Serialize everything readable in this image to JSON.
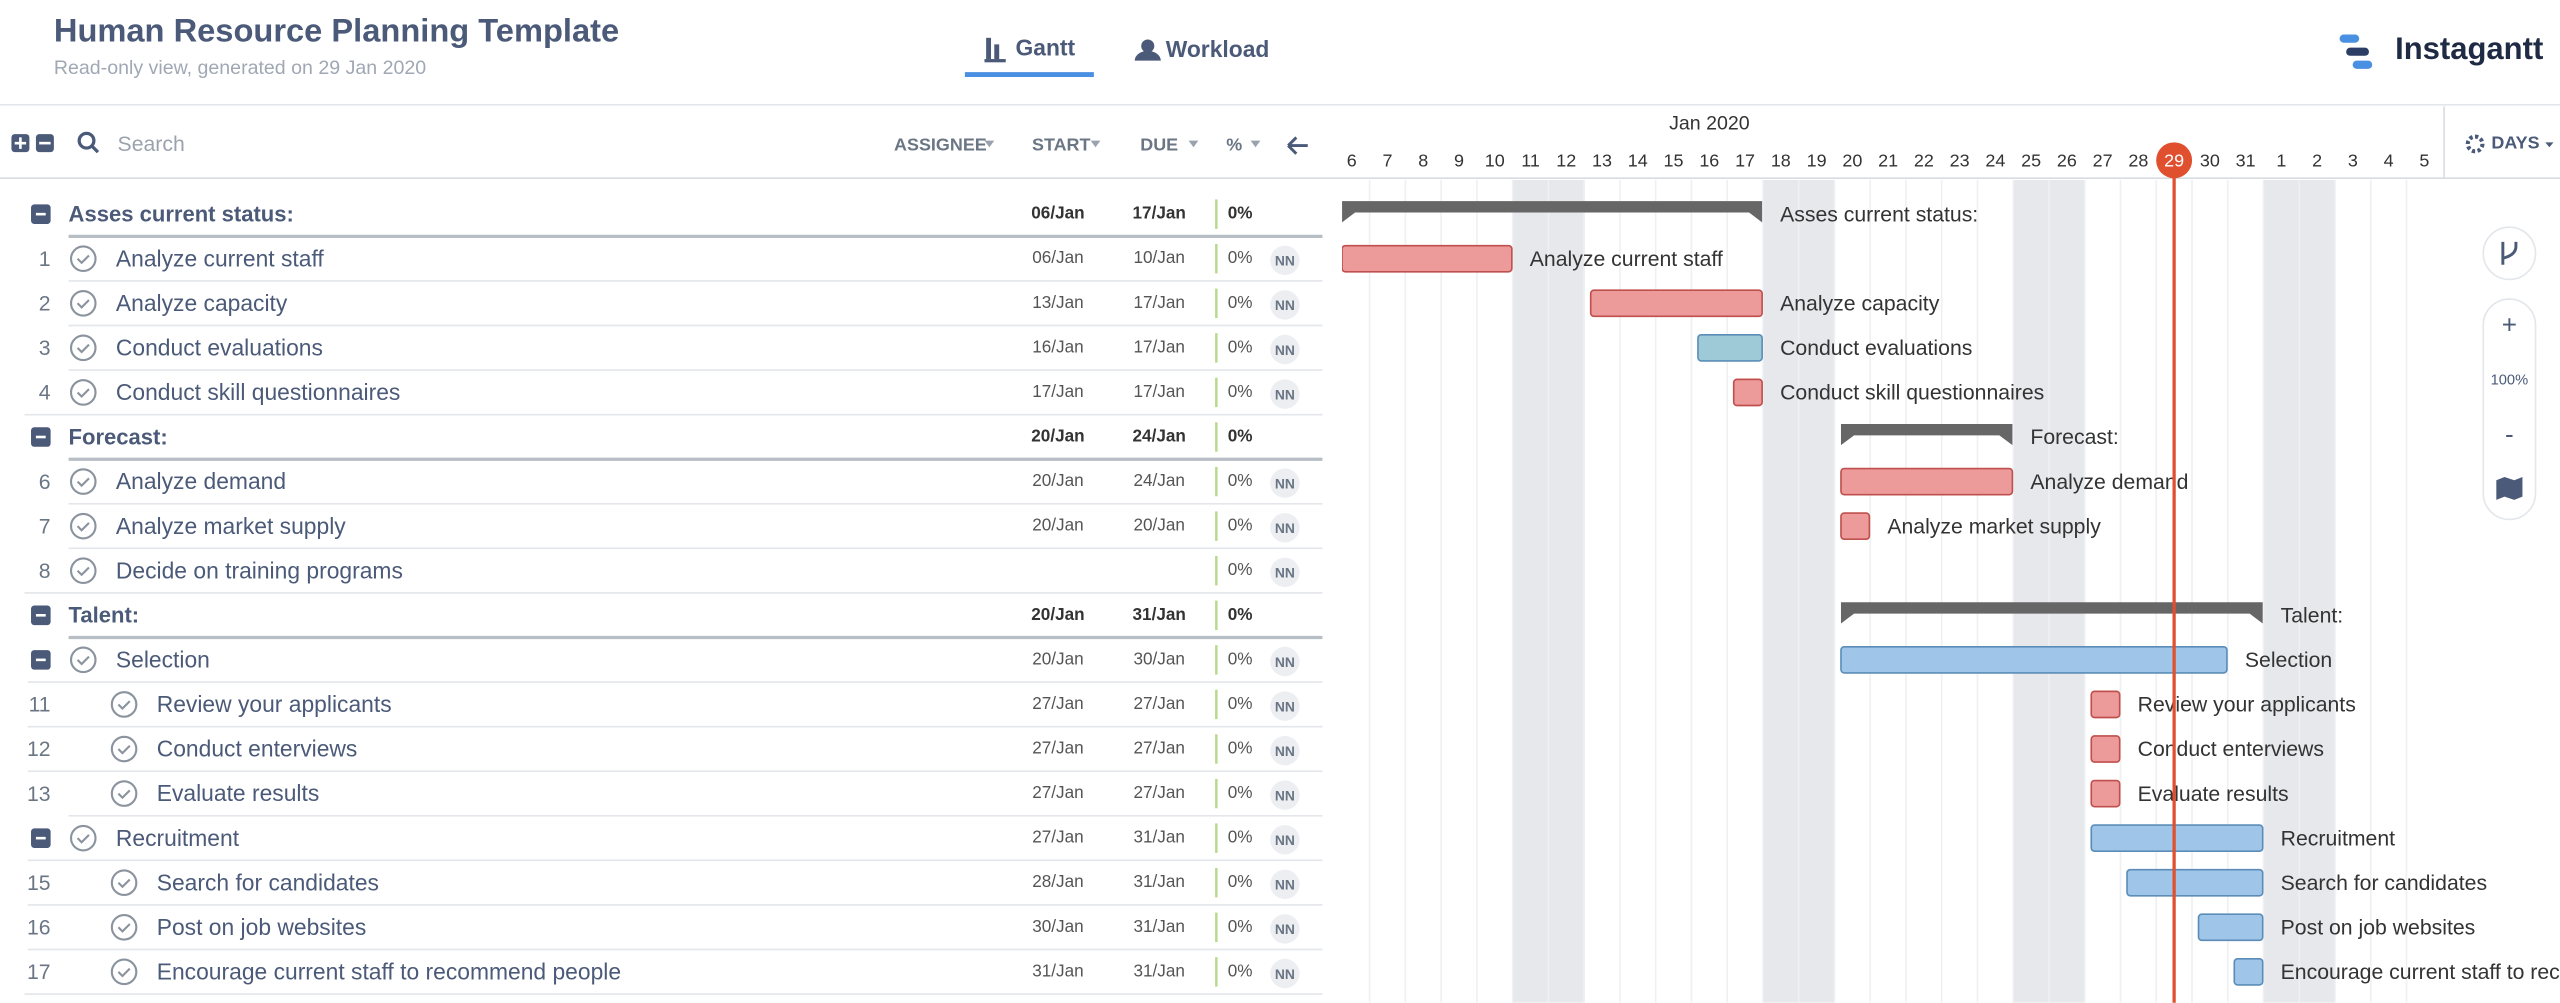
{
  "header": {
    "title": "Human Resource Planning Template",
    "subtitle": "Read-only view, generated on 29 Jan 2020",
    "tabs": [
      "Gantt",
      "Workload"
    ],
    "brand": "Instagantt"
  },
  "toolbar": {
    "search_placeholder": "Search",
    "columns": [
      "ASSIGNEE",
      "START",
      "DUE",
      "%"
    ]
  },
  "timeline": {
    "month": "Jan 2020",
    "days": [
      6,
      7,
      8,
      9,
      10,
      11,
      12,
      13,
      14,
      15,
      16,
      17,
      18,
      19,
      20,
      21,
      22,
      23,
      24,
      25,
      26,
      27,
      28,
      29,
      30,
      31,
      1,
      2,
      3,
      4,
      5
    ],
    "today": 29,
    "scale": "DAYS"
  },
  "zoom": {
    "plus": "+",
    "level": "100%",
    "minus": "-"
  },
  "tasks": [
    {
      "kind": "group",
      "name": "Asses current status:",
      "start": "06/Jan",
      "due": "17/Jan",
      "progress": "0%",
      "color": "#666666"
    },
    {
      "kind": "task",
      "level": 1,
      "number": "1",
      "name": "Analyze current staff",
      "start": "06/Jan",
      "due": "10/Jan",
      "progress": "0%",
      "assignee": "NN",
      "color": "#ec9a9a"
    },
    {
      "kind": "task",
      "level": 1,
      "number": "2",
      "name": "Analyze capacity",
      "start": "13/Jan",
      "due": "17/Jan",
      "progress": "0%",
      "assignee": "NN",
      "color": "#ec9a9a"
    },
    {
      "kind": "task",
      "level": 1,
      "number": "3",
      "name": "Conduct evaluations",
      "start": "16/Jan",
      "due": "17/Jan",
      "progress": "0%",
      "assignee": "NN",
      "color": "#9ecad8"
    },
    {
      "kind": "task",
      "level": 1,
      "number": "4",
      "name": "Conduct skill questionnaires",
      "start": "17/Jan",
      "due": "17/Jan",
      "progress": "0%",
      "assignee": "NN",
      "color": "#ec9a9a"
    },
    {
      "kind": "group",
      "name": "Forecast:",
      "start": "20/Jan",
      "due": "24/Jan",
      "progress": "0%",
      "color": "#666666"
    },
    {
      "kind": "task",
      "level": 1,
      "number": "6",
      "name": "Analyze demand",
      "start": "20/Jan",
      "due": "24/Jan",
      "progress": "0%",
      "assignee": "NN",
      "color": "#ec9a9a"
    },
    {
      "kind": "task",
      "level": 1,
      "number": "7",
      "name": "Analyze market supply",
      "start": "20/Jan",
      "due": "20/Jan",
      "progress": "0%",
      "assignee": "NN",
      "color": "#ec9a9a"
    },
    {
      "kind": "task",
      "level": 1,
      "number": "8",
      "name": "Decide on training programs",
      "progress": "0%",
      "assignee": "NN"
    },
    {
      "kind": "group",
      "name": "Talent:",
      "start": "20/Jan",
      "due": "31/Jan",
      "progress": "0%",
      "color": "#666666"
    },
    {
      "kind": "subgroup",
      "level": 1,
      "name": "Selection",
      "start": "20/Jan",
      "due": "30/Jan",
      "progress": "0%",
      "assignee": "NN",
      "color": "#9fc5e8"
    },
    {
      "kind": "task",
      "level": 2,
      "number": "11",
      "name": "Review your applicants",
      "start": "27/Jan",
      "due": "27/Jan",
      "progress": "0%",
      "assignee": "NN",
      "color": "#ec9a9a"
    },
    {
      "kind": "task",
      "level": 2,
      "number": "12",
      "name": "Conduct enterviews",
      "start": "27/Jan",
      "due": "27/Jan",
      "progress": "0%",
      "assignee": "NN",
      "color": "#ec9a9a"
    },
    {
      "kind": "task",
      "level": 2,
      "number": "13",
      "name": "Evaluate results",
      "start": "27/Jan",
      "due": "27/Jan",
      "progress": "0%",
      "assignee": "NN",
      "color": "#ec9a9a"
    },
    {
      "kind": "subgroup",
      "level": 1,
      "name": "Recruitment",
      "start": "27/Jan",
      "due": "31/Jan",
      "progress": "0%",
      "assignee": "NN",
      "color": "#9fc5e8"
    },
    {
      "kind": "task",
      "level": 2,
      "number": "15",
      "name": "Search for candidates",
      "start": "28/Jan",
      "due": "31/Jan",
      "progress": "0%",
      "assignee": "NN",
      "color": "#9fc5e8"
    },
    {
      "kind": "task",
      "level": 2,
      "number": "16",
      "name": "Post on job websites",
      "start": "30/Jan",
      "due": "31/Jan",
      "progress": "0%",
      "assignee": "NN",
      "color": "#9fc5e8"
    },
    {
      "kind": "task",
      "level": 2,
      "number": "17",
      "name": "Encourage current staff to recommend people",
      "start": "31/Jan",
      "due": "31/Jan",
      "progress": "0%",
      "assignee": "NN",
      "color": "#9fc5e8"
    }
  ]
}
